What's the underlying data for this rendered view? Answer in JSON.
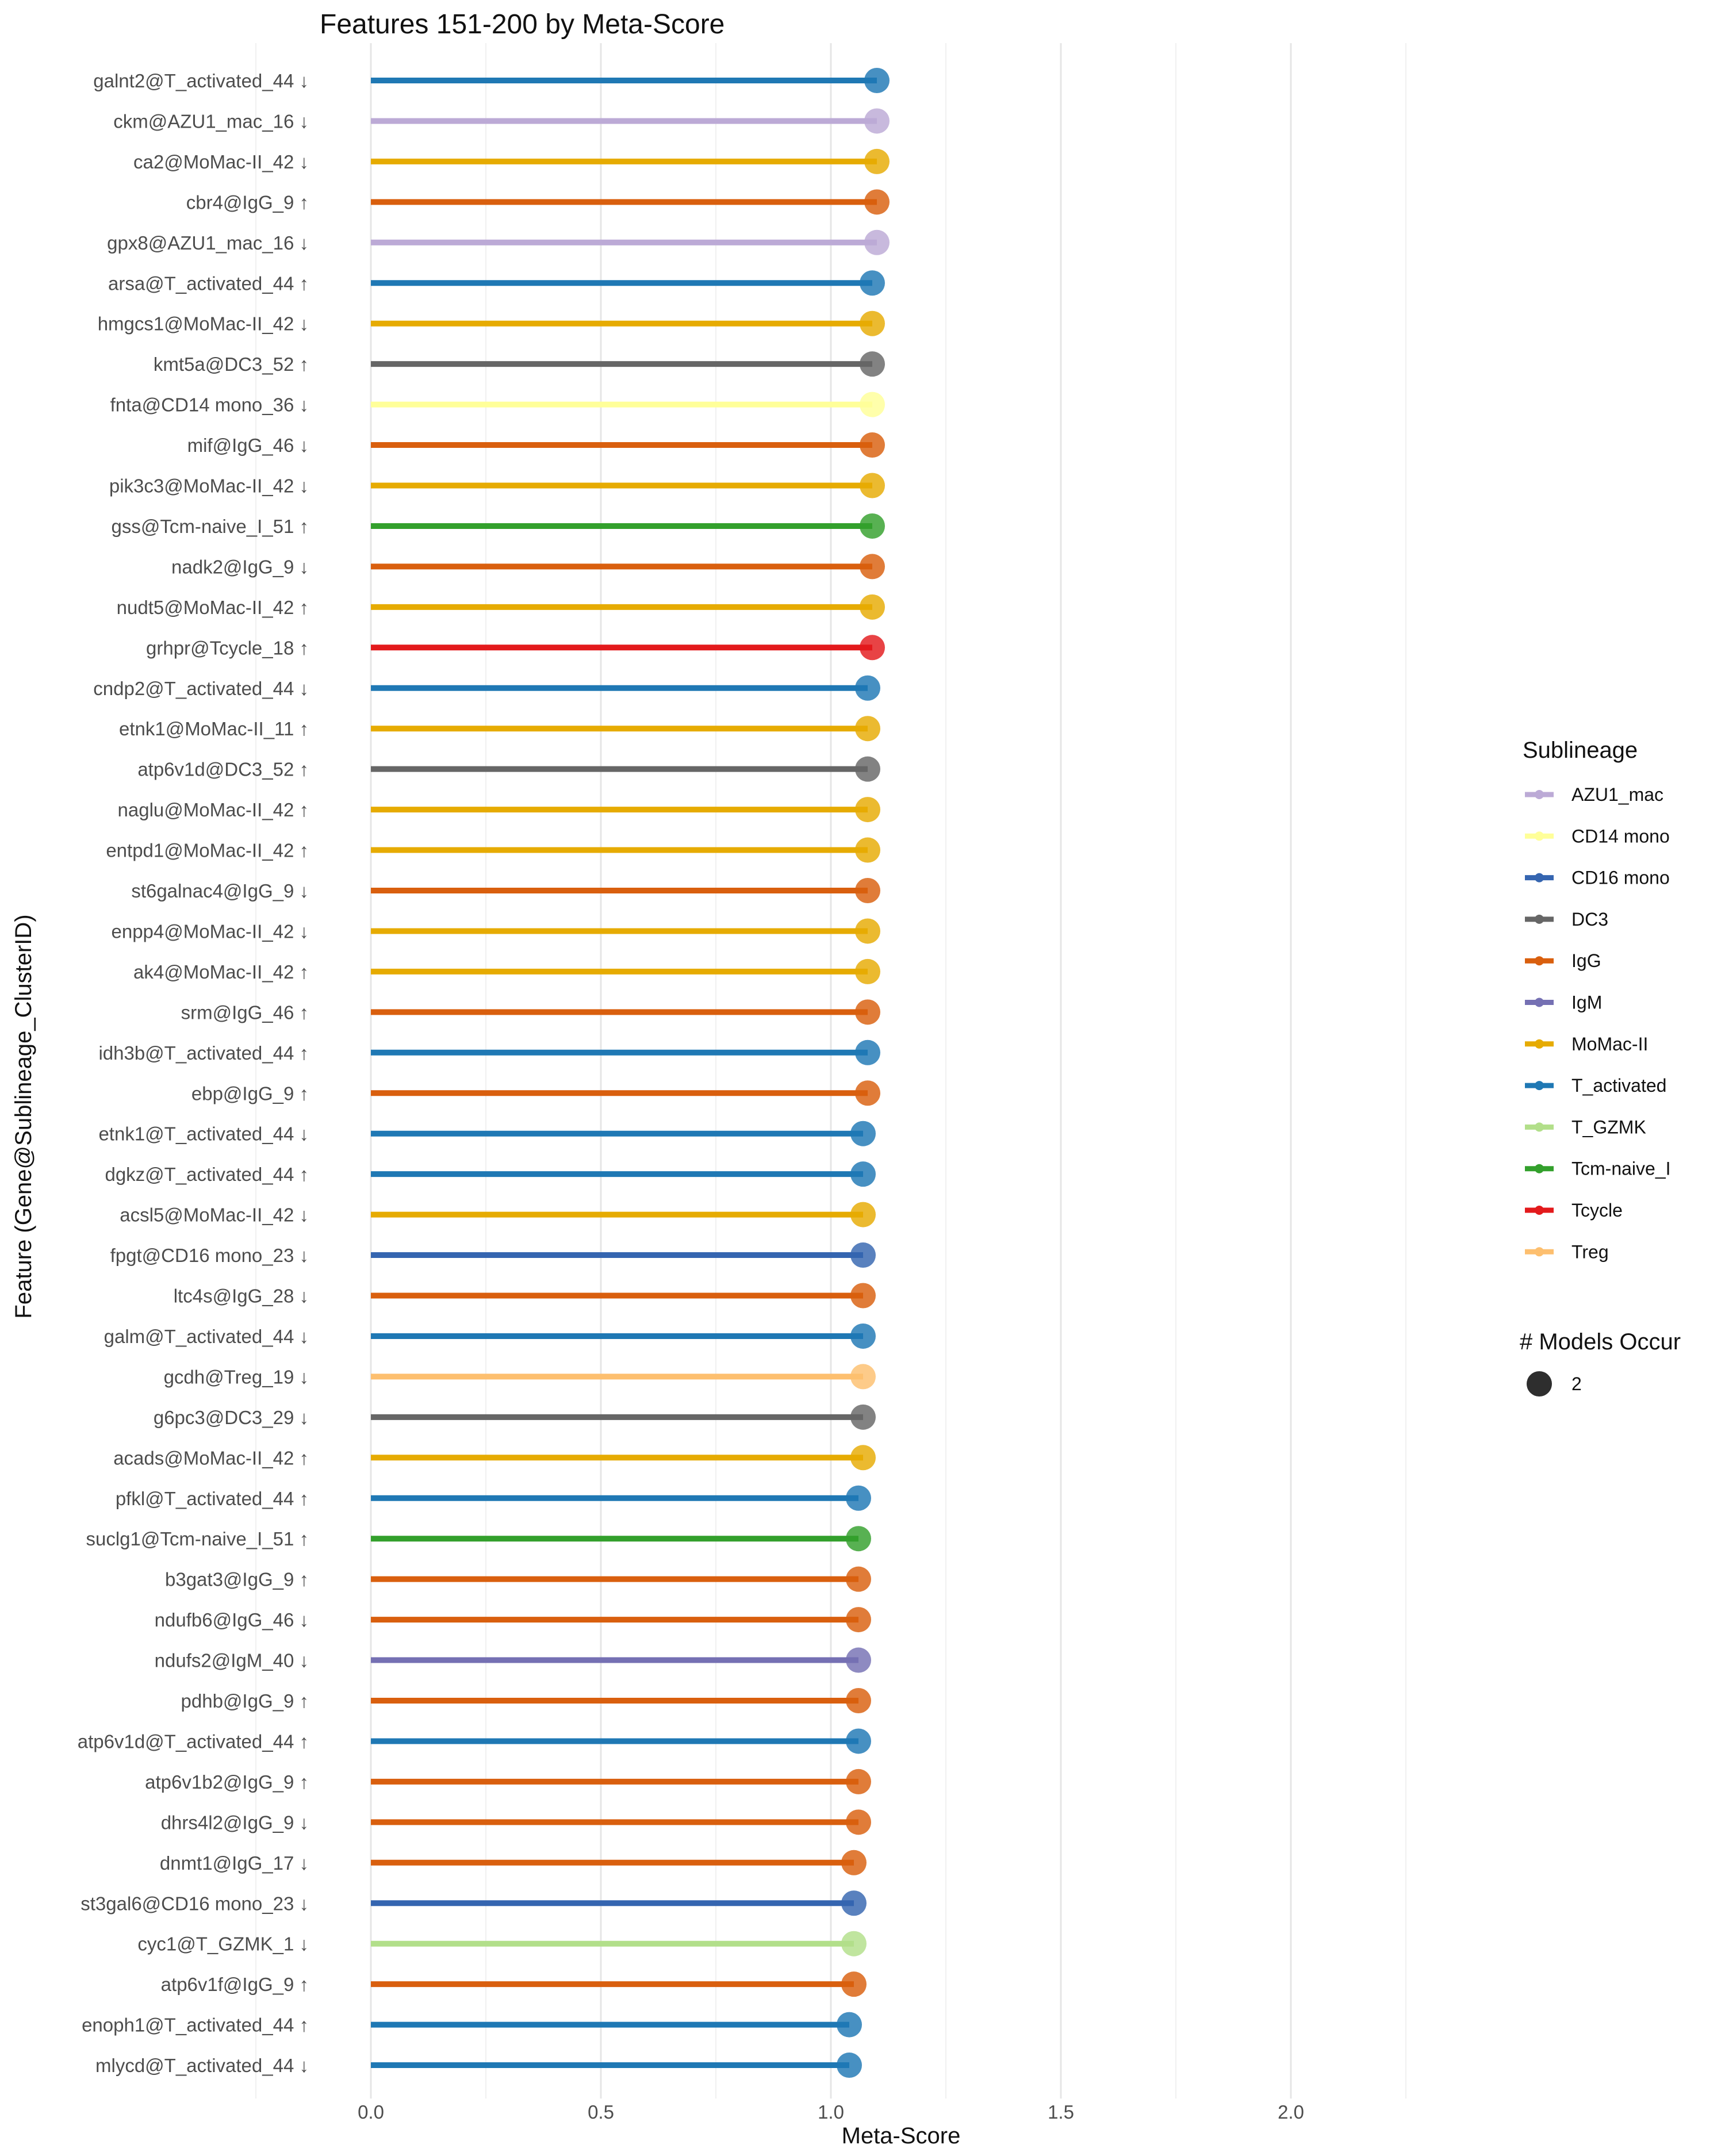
{
  "chart_data": {
    "type": "lollipop",
    "title": "Features 151-200 by Meta-Score",
    "xlabel": "Meta-Score",
    "ylabel": "Feature (Gene@Sublineage_ClusterID)",
    "xlim": [
      -0.3,
      2.35
    ],
    "xticks": [
      "0.0",
      "0.5",
      "1.0",
      "1.5",
      "2.0"
    ],
    "xtick_values": [
      0.0,
      0.5,
      1.0,
      1.5,
      2.0
    ],
    "grid": true,
    "legend_placement": "right",
    "legend_title": "Sublineage",
    "size_legend_title": "# Models Occur",
    "size_legend_items": [
      {
        "label": "2",
        "value": 2
      }
    ],
    "sublineages": [
      {
        "name": "AZU1_mac",
        "color": "#bcaad6"
      },
      {
        "name": "CD14 mono",
        "color": "#ffff99"
      },
      {
        "name": "CD16 mono",
        "color": "#3565b0"
      },
      {
        "name": "DC3",
        "color": "#666666"
      },
      {
        "name": "IgG",
        "color": "#d95f0e"
      },
      {
        "name": "IgM",
        "color": "#7570b3"
      },
      {
        "name": "MoMac-II",
        "color": "#e6ab02"
      },
      {
        "name": "T_activated",
        "color": "#1f78b4"
      },
      {
        "name": "T_GZMK",
        "color": "#b2df8a"
      },
      {
        "name": "Tcm-naive_I",
        "color": "#33a02c"
      },
      {
        "name": "Tcycle",
        "color": "#e31a1c"
      },
      {
        "name": "Treg",
        "color": "#fdbf6f"
      }
    ],
    "features": [
      {
        "label": "galnt2@T_activated_44 ↓",
        "sublineage": "T_activated",
        "value": 1.1,
        "models": 2
      },
      {
        "label": "ckm@AZU1_mac_16 ↓",
        "sublineage": "AZU1_mac",
        "value": 1.1,
        "models": 2
      },
      {
        "label": "ca2@MoMac-II_42 ↓",
        "sublineage": "MoMac-II",
        "value": 1.1,
        "models": 2
      },
      {
        "label": "cbr4@IgG_9 ↑",
        "sublineage": "IgG",
        "value": 1.1,
        "models": 2
      },
      {
        "label": "gpx8@AZU1_mac_16 ↓",
        "sublineage": "AZU1_mac",
        "value": 1.1,
        "models": 2
      },
      {
        "label": "arsa@T_activated_44 ↑",
        "sublineage": "T_activated",
        "value": 1.09,
        "models": 2
      },
      {
        "label": "hmgcs1@MoMac-II_42 ↓",
        "sublineage": "MoMac-II",
        "value": 1.09,
        "models": 2
      },
      {
        "label": "kmt5a@DC3_52 ↑",
        "sublineage": "DC3",
        "value": 1.09,
        "models": 2
      },
      {
        "label": "fnta@CD14 mono_36 ↓",
        "sublineage": "CD14 mono",
        "value": 1.09,
        "models": 2
      },
      {
        "label": "mif@IgG_46 ↓",
        "sublineage": "IgG",
        "value": 1.09,
        "models": 2
      },
      {
        "label": "pik3c3@MoMac-II_42 ↓",
        "sublineage": "MoMac-II",
        "value": 1.09,
        "models": 2
      },
      {
        "label": "gss@Tcm-naive_I_51 ↑",
        "sublineage": "Tcm-naive_I",
        "value": 1.09,
        "models": 2
      },
      {
        "label": "nadk2@IgG_9 ↓",
        "sublineage": "IgG",
        "value": 1.09,
        "models": 2
      },
      {
        "label": "nudt5@MoMac-II_42 ↑",
        "sublineage": "MoMac-II",
        "value": 1.09,
        "models": 2
      },
      {
        "label": "grhpr@Tcycle_18 ↑",
        "sublineage": "Tcycle",
        "value": 1.09,
        "models": 2
      },
      {
        "label": "cndp2@T_activated_44 ↓",
        "sublineage": "T_activated",
        "value": 1.08,
        "models": 2
      },
      {
        "label": "etnk1@MoMac-II_11 ↑",
        "sublineage": "MoMac-II",
        "value": 1.08,
        "models": 2
      },
      {
        "label": "atp6v1d@DC3_52 ↑",
        "sublineage": "DC3",
        "value": 1.08,
        "models": 2
      },
      {
        "label": "naglu@MoMac-II_42 ↑",
        "sublineage": "MoMac-II",
        "value": 1.08,
        "models": 2
      },
      {
        "label": "entpd1@MoMac-II_42 ↑",
        "sublineage": "MoMac-II",
        "value": 1.08,
        "models": 2
      },
      {
        "label": "st6galnac4@IgG_9 ↓",
        "sublineage": "IgG",
        "value": 1.08,
        "models": 2
      },
      {
        "label": "enpp4@MoMac-II_42 ↓",
        "sublineage": "MoMac-II",
        "value": 1.08,
        "models": 2
      },
      {
        "label": "ak4@MoMac-II_42 ↑",
        "sublineage": "MoMac-II",
        "value": 1.08,
        "models": 2
      },
      {
        "label": "srm@IgG_46 ↑",
        "sublineage": "IgG",
        "value": 1.08,
        "models": 2
      },
      {
        "label": "idh3b@T_activated_44 ↑",
        "sublineage": "T_activated",
        "value": 1.08,
        "models": 2
      },
      {
        "label": "ebp@IgG_9 ↑",
        "sublineage": "IgG",
        "value": 1.08,
        "models": 2
      },
      {
        "label": "etnk1@T_activated_44 ↓",
        "sublineage": "T_activated",
        "value": 1.07,
        "models": 2
      },
      {
        "label": "dgkz@T_activated_44 ↑",
        "sublineage": "T_activated",
        "value": 1.07,
        "models": 2
      },
      {
        "label": "acsl5@MoMac-II_42 ↓",
        "sublineage": "MoMac-II",
        "value": 1.07,
        "models": 2
      },
      {
        "label": "fpgt@CD16 mono_23 ↓",
        "sublineage": "CD16 mono",
        "value": 1.07,
        "models": 2
      },
      {
        "label": "ltc4s@IgG_28 ↓",
        "sublineage": "IgG",
        "value": 1.07,
        "models": 2
      },
      {
        "label": "galm@T_activated_44 ↓",
        "sublineage": "T_activated",
        "value": 1.07,
        "models": 2
      },
      {
        "label": "gcdh@Treg_19 ↓",
        "sublineage": "Treg",
        "value": 1.07,
        "models": 2
      },
      {
        "label": "g6pc3@DC3_29 ↓",
        "sublineage": "DC3",
        "value": 1.07,
        "models": 2
      },
      {
        "label": "acads@MoMac-II_42 ↑",
        "sublineage": "MoMac-II",
        "value": 1.07,
        "models": 2
      },
      {
        "label": "pfkl@T_activated_44 ↑",
        "sublineage": "T_activated",
        "value": 1.06,
        "models": 2
      },
      {
        "label": "suclg1@Tcm-naive_I_51 ↑",
        "sublineage": "Tcm-naive_I",
        "value": 1.06,
        "models": 2
      },
      {
        "label": "b3gat3@IgG_9 ↑",
        "sublineage": "IgG",
        "value": 1.06,
        "models": 2
      },
      {
        "label": "ndufb6@IgG_46 ↓",
        "sublineage": "IgG",
        "value": 1.06,
        "models": 2
      },
      {
        "label": "ndufs2@IgM_40 ↓",
        "sublineage": "IgM",
        "value": 1.06,
        "models": 2
      },
      {
        "label": "pdhb@IgG_9 ↑",
        "sublineage": "IgG",
        "value": 1.06,
        "models": 2
      },
      {
        "label": "atp6v1d@T_activated_44 ↑",
        "sublineage": "T_activated",
        "value": 1.06,
        "models": 2
      },
      {
        "label": "atp6v1b2@IgG_9 ↑",
        "sublineage": "IgG",
        "value": 1.06,
        "models": 2
      },
      {
        "label": "dhrs4l2@IgG_9 ↓",
        "sublineage": "IgG",
        "value": 1.06,
        "models": 2
      },
      {
        "label": "dnmt1@IgG_17 ↓",
        "sublineage": "IgG",
        "value": 1.05,
        "models": 2
      },
      {
        "label": "st3gal6@CD16 mono_23 ↓",
        "sublineage": "CD16 mono",
        "value": 1.05,
        "models": 2
      },
      {
        "label": "cyc1@T_GZMK_1 ↓",
        "sublineage": "T_GZMK",
        "value": 1.05,
        "models": 2
      },
      {
        "label": "atp6v1f@IgG_9 ↑",
        "sublineage": "IgG",
        "value": 1.05,
        "models": 2
      },
      {
        "label": "enoph1@T_activated_44 ↑",
        "sublineage": "T_activated",
        "value": 1.04,
        "models": 2
      },
      {
        "label": "mlycd@T_activated_44 ↓",
        "sublineage": "T_activated",
        "value": 1.04,
        "models": 2
      }
    ]
  }
}
